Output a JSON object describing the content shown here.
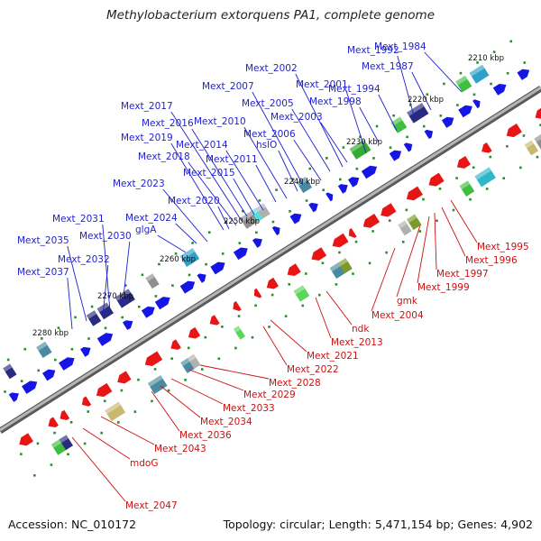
{
  "title": "Methylobacterium extorquens PA1, complete genome",
  "footer": {
    "accession": "Accession: NC_010172",
    "topology": "Topology: circular; Length: 5,471,154 bp; Genes: 4,902"
  },
  "ticks": [
    "2210 kbp",
    "2220 kbp",
    "2230 kbp",
    "2240 kbp",
    "2250 kbp",
    "2260 kbp",
    "2270 kbp",
    "2280 kbp"
  ],
  "forward_labels": [
    "Mext_1984",
    "Mext_1992",
    "Mext_1987",
    "Mext_2002",
    "Mext_2001",
    "Mext_1994",
    "Mext_2007",
    "Mext_1998",
    "Mext_2005",
    "Mext_2003",
    "Mext_2017",
    "Mext_2016",
    "Mext_2010",
    "Mext_2006",
    "Mext_2019",
    "hslO",
    "Mext_2014",
    "Mext_2018",
    "Mext_2011",
    "Mext_2015",
    "Mext_2023",
    "Mext_2020",
    "Mext_2031",
    "Mext_2024",
    "Mext_2030",
    "glgA",
    "Mext_2035",
    "Mext_2032",
    "Mext_2037"
  ],
  "reverse_labels": [
    "Mext_1995",
    "Mext_1996",
    "Mext_1997",
    "Mext_1999",
    "gmk",
    "Mext_2004",
    "ndk",
    "Mext_2013",
    "Mext_2021",
    "Mext_2022",
    "Mext_2028",
    "Mext_2029",
    "Mext_2033",
    "Mext_2034",
    "Mext_2036",
    "Mext_2043",
    "mdoG",
    "Mext_2047"
  ],
  "colors": {
    "forward_label": "#1f1fd0",
    "reverse_label": "#cc1111",
    "forward_gene": "#1515e6",
    "reverse_gene": "#e81515",
    "backbone": "#8a8a8a"
  }
}
